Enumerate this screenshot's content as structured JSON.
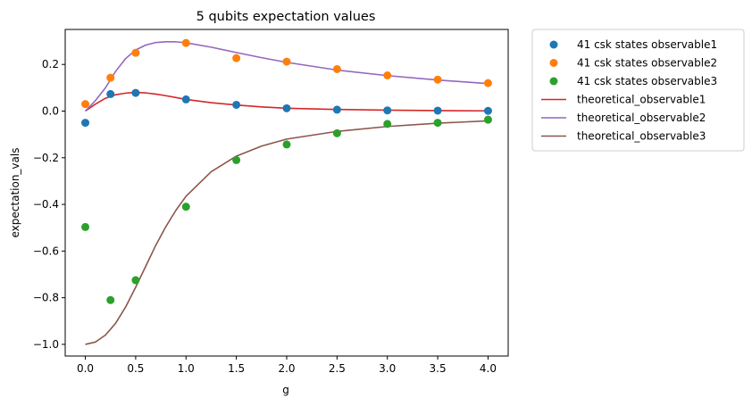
{
  "chart_data": {
    "type": "scatter",
    "title": "5 qubits expectation values",
    "xlabel": "g",
    "ylabel": "expectation_vals",
    "xlim": [
      -0.2,
      4.2
    ],
    "ylim": [
      -1.05,
      0.35
    ],
    "xticks": [
      "0.0",
      "0.5",
      "1.0",
      "1.5",
      "2.0",
      "2.5",
      "3.0",
      "3.5",
      "4.0"
    ],
    "yticks": [
      "0.2",
      "0.0",
      "−0.2",
      "−0.4",
      "−0.6",
      "−0.8",
      "−1.0"
    ],
    "grid": false,
    "legend_position": "outside-right",
    "scatter_series": [
      {
        "name": "41 csk states observable1",
        "color": "#1f77b4",
        "points": [
          [
            0.0,
            -0.05
          ],
          [
            0.25,
            0.073
          ],
          [
            0.5,
            0.078
          ],
          [
            1.0,
            0.05
          ],
          [
            1.5,
            0.027
          ],
          [
            2.0,
            0.012
          ],
          [
            2.5,
            0.006
          ],
          [
            3.0,
            0.003
          ],
          [
            3.5,
            0.002
          ],
          [
            4.0,
            0.001
          ]
        ]
      },
      {
        "name": "41 csk states observable2",
        "color": "#ff7f0e",
        "points": [
          [
            0.0,
            0.03
          ],
          [
            0.25,
            0.143
          ],
          [
            0.5,
            0.25
          ],
          [
            1.0,
            0.292
          ],
          [
            1.5,
            0.227
          ],
          [
            2.0,
            0.212
          ],
          [
            2.5,
            0.18
          ],
          [
            3.0,
            0.153
          ],
          [
            3.5,
            0.135
          ],
          [
            4.0,
            0.12
          ]
        ]
      },
      {
        "name": "41 csk states observable3",
        "color": "#2ca02c",
        "points": [
          [
            0.0,
            -0.497
          ],
          [
            0.25,
            -0.81
          ],
          [
            0.5,
            -0.725
          ],
          [
            1.0,
            -0.41
          ],
          [
            1.5,
            -0.21
          ],
          [
            2.0,
            -0.143
          ],
          [
            2.5,
            -0.095
          ],
          [
            3.0,
            -0.055
          ],
          [
            3.5,
            -0.05
          ],
          [
            4.0,
            -0.037
          ]
        ]
      }
    ],
    "line_series": [
      {
        "name": "theoretical_observable1",
        "color": "#d62728",
        "points": [
          [
            0.0,
            0.0
          ],
          [
            0.1,
            0.03
          ],
          [
            0.2,
            0.055
          ],
          [
            0.3,
            0.07
          ],
          [
            0.4,
            0.077
          ],
          [
            0.5,
            0.08
          ],
          [
            0.6,
            0.078
          ],
          [
            0.7,
            0.073
          ],
          [
            0.8,
            0.066
          ],
          [
            0.9,
            0.058
          ],
          [
            1.0,
            0.05
          ],
          [
            1.25,
            0.036
          ],
          [
            1.5,
            0.026
          ],
          [
            1.75,
            0.018
          ],
          [
            2.0,
            0.012
          ],
          [
            2.5,
            0.007
          ],
          [
            3.0,
            0.004
          ],
          [
            3.5,
            0.002
          ],
          [
            4.0,
            0.001
          ]
        ]
      },
      {
        "name": "theoretical_observable2",
        "color": "#9467bd",
        "points": [
          [
            0.0,
            0.0
          ],
          [
            0.1,
            0.045
          ],
          [
            0.2,
            0.1
          ],
          [
            0.3,
            0.17
          ],
          [
            0.4,
            0.225
          ],
          [
            0.5,
            0.262
          ],
          [
            0.6,
            0.283
          ],
          [
            0.7,
            0.294
          ],
          [
            0.8,
            0.297
          ],
          [
            0.9,
            0.297
          ],
          [
            1.0,
            0.293
          ],
          [
            1.25,
            0.274
          ],
          [
            1.5,
            0.251
          ],
          [
            1.75,
            0.229
          ],
          [
            2.0,
            0.209
          ],
          [
            2.5,
            0.176
          ],
          [
            3.0,
            0.152
          ],
          [
            3.5,
            0.133
          ],
          [
            4.0,
            0.118
          ]
        ]
      },
      {
        "name": "theoretical_observable3",
        "color": "#8c564b",
        "points": [
          [
            0.0,
            -1.0
          ],
          [
            0.1,
            -0.99
          ],
          [
            0.2,
            -0.96
          ],
          [
            0.3,
            -0.91
          ],
          [
            0.4,
            -0.84
          ],
          [
            0.5,
            -0.755
          ],
          [
            0.6,
            -0.665
          ],
          [
            0.7,
            -0.575
          ],
          [
            0.8,
            -0.495
          ],
          [
            0.9,
            -0.425
          ],
          [
            1.0,
            -0.365
          ],
          [
            1.25,
            -0.26
          ],
          [
            1.5,
            -0.193
          ],
          [
            1.75,
            -0.15
          ],
          [
            2.0,
            -0.12
          ],
          [
            2.5,
            -0.087
          ],
          [
            3.0,
            -0.066
          ],
          [
            3.5,
            -0.052
          ],
          [
            4.0,
            -0.042
          ]
        ]
      }
    ]
  }
}
